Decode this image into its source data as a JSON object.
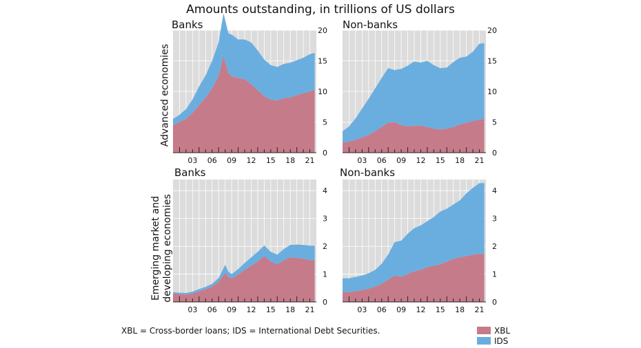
{
  "title": "Amounts outstanding, in trillions of US dollars",
  "row_labels": [
    "Advanced  economies",
    "Emerging market and developing economies"
  ],
  "footnote": "XBL = Cross-border loans; IDS = International Debt Securities.",
  "legend": [
    {
      "label": "XBL",
      "color": "#c67b8a"
    },
    {
      "label": "IDS",
      "color": "#6aaee0"
    }
  ],
  "colors": {
    "plot_bg": "#dcdcdc",
    "grid": "#ffffff",
    "xbl": "#c67b8a",
    "ids": "#6aaee0",
    "axis": "#222222"
  },
  "chart_data": [
    {
      "type": "area",
      "panel": "top-left",
      "title": "Banks",
      "x_tick_labels": [
        "03",
        "06",
        "09",
        "12",
        "15",
        "18",
        "21"
      ],
      "x_range": [
        2000,
        2022
      ],
      "ylim": [
        0,
        20
      ],
      "y_ticks": [
        0,
        5,
        10,
        15,
        20
      ],
      "x": [
        2000,
        2001,
        2002,
        2003,
        2004,
        2005,
        2006,
        2007,
        2007.75,
        2008.5,
        2009,
        2010,
        2011,
        2012,
        2013,
        2014,
        2015,
        2016,
        2017,
        2018,
        2019,
        2020,
        2021,
        2021.75
      ],
      "series": [
        {
          "name": "XBL",
          "values": [
            4.5,
            5.0,
            5.5,
            6.5,
            7.8,
            9.0,
            10.5,
            12.5,
            15.8,
            13.0,
            12.5,
            12.2,
            12.0,
            11.2,
            10.2,
            9.2,
            8.7,
            8.5,
            8.9,
            9.0,
            9.4,
            9.7,
            10.0,
            10.3
          ]
        },
        {
          "name": "IDS",
          "values": [
            1.0,
            1.2,
            1.6,
            2.2,
            3.0,
            3.6,
            4.5,
            5.5,
            7.0,
            6.5,
            6.8,
            6.3,
            6.5,
            6.8,
            6.5,
            6.0,
            5.6,
            5.5,
            5.6,
            5.7,
            5.7,
            5.8,
            6.1,
            6.0
          ]
        }
      ]
    },
    {
      "type": "area",
      "panel": "top-right",
      "title": "Non-banks",
      "x_tick_labels": [
        "03",
        "06",
        "09",
        "12",
        "15",
        "18",
        "21"
      ],
      "x_range": [
        2000,
        2022
      ],
      "ylim": [
        0,
        20
      ],
      "y_ticks": [
        0,
        5,
        10,
        15,
        20
      ],
      "x": [
        2000,
        2001,
        2002,
        2003,
        2004,
        2005,
        2006,
        2007,
        2008,
        2009,
        2010,
        2011,
        2012,
        2013,
        2014,
        2015,
        2016,
        2017,
        2018,
        2019,
        2020,
        2021,
        2021.75
      ],
      "series": [
        {
          "name": "XBL",
          "values": [
            1.6,
            1.8,
            2.1,
            2.5,
            2.9,
            3.5,
            4.2,
            4.9,
            5.0,
            4.5,
            4.3,
            4.4,
            4.4,
            4.2,
            3.9,
            3.8,
            3.9,
            4.2,
            4.6,
            4.9,
            5.2,
            5.4,
            5.5
          ]
        },
        {
          "name": "IDS",
          "values": [
            1.9,
            2.5,
            3.5,
            4.7,
            5.9,
            7.0,
            8.0,
            8.9,
            8.5,
            9.2,
            9.9,
            10.5,
            10.3,
            10.8,
            10.4,
            10.0,
            10.0,
            10.6,
            10.9,
            10.8,
            11.3,
            12.4,
            12.4
          ]
        }
      ]
    },
    {
      "type": "area",
      "panel": "bottom-left",
      "title": "Banks",
      "x_tick_labels": [
        "03",
        "06",
        "09",
        "12",
        "15",
        "18",
        "21"
      ],
      "x_range": [
        2000,
        2022
      ],
      "ylim": [
        0,
        4.4
      ],
      "y_ticks": [
        0,
        1,
        2,
        3,
        4
      ],
      "x": [
        2000,
        2001,
        2002,
        2003,
        2004,
        2005,
        2006,
        2007,
        2008,
        2008.5,
        2009,
        2010,
        2011,
        2012,
        2013,
        2014,
        2015,
        2016,
        2017,
        2018,
        2019,
        2020,
        2021,
        2021.75
      ],
      "series": [
        {
          "name": "XBL",
          "values": [
            0.3,
            0.28,
            0.26,
            0.3,
            0.38,
            0.45,
            0.55,
            0.72,
            1.05,
            0.9,
            0.85,
            0.98,
            1.15,
            1.3,
            1.45,
            1.65,
            1.45,
            1.35,
            1.5,
            1.6,
            1.58,
            1.55,
            1.5,
            1.5
          ]
        },
        {
          "name": "IDS",
          "values": [
            0.05,
            0.05,
            0.06,
            0.07,
            0.08,
            0.09,
            0.1,
            0.14,
            0.28,
            0.18,
            0.15,
            0.2,
            0.25,
            0.3,
            0.35,
            0.38,
            0.35,
            0.35,
            0.4,
            0.45,
            0.48,
            0.5,
            0.52,
            0.52
          ]
        }
      ]
    },
    {
      "type": "area",
      "panel": "bottom-right",
      "title": "Non-banks",
      "x_tick_labels": [
        "03",
        "06",
        "09",
        "12",
        "15",
        "18",
        "21"
      ],
      "x_range": [
        2000,
        2022
      ],
      "ylim": [
        0,
        4.4
      ],
      "y_ticks": [
        0,
        1,
        2,
        3,
        4
      ],
      "x": [
        2000,
        2001,
        2002,
        2003,
        2004,
        2005,
        2006,
        2007,
        2008,
        2009,
        2010,
        2011,
        2012,
        2013,
        2014,
        2015,
        2016,
        2017,
        2018,
        2019,
        2020,
        2021,
        2021.75
      ],
      "series": [
        {
          "name": "XBL",
          "values": [
            0.35,
            0.35,
            0.38,
            0.42,
            0.48,
            0.55,
            0.65,
            0.8,
            0.95,
            0.9,
            1.0,
            1.1,
            1.15,
            1.25,
            1.3,
            1.35,
            1.45,
            1.55,
            1.6,
            1.65,
            1.7,
            1.72,
            1.72
          ]
        },
        {
          "name": "IDS",
          "values": [
            0.5,
            0.5,
            0.52,
            0.53,
            0.55,
            0.6,
            0.72,
            0.9,
            1.2,
            1.3,
            1.45,
            1.55,
            1.6,
            1.65,
            1.75,
            1.9,
            1.9,
            1.95,
            2.05,
            2.25,
            2.4,
            2.55,
            2.55
          ]
        }
      ]
    }
  ]
}
